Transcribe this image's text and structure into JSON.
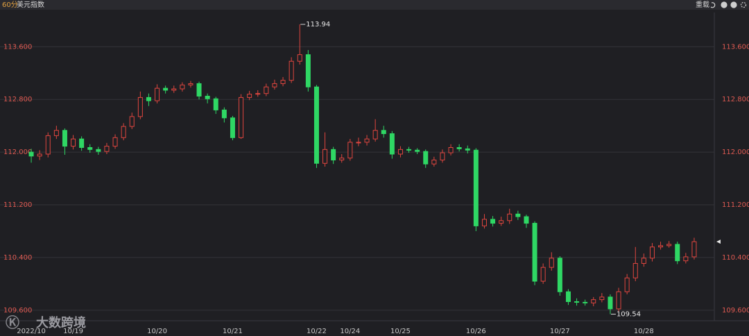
{
  "header": {
    "period": "60分",
    "symbol": "美元指数",
    "reload": "重载"
  },
  "watermark": "大数跨境",
  "chart_data": {
    "type": "candlestick",
    "categories": [
      "2022/10",
      null,
      null,
      null,
      null,
      "10/19",
      null,
      null,
      null,
      null,
      null,
      null,
      null,
      null,
      null,
      "10/20",
      null,
      null,
      null,
      null,
      null,
      null,
      null,
      null,
      "10/21",
      null,
      null,
      null,
      null,
      null,
      null,
      null,
      null,
      null,
      "10/22",
      null,
      null,
      null,
      "10/24",
      null,
      null,
      null,
      null,
      null,
      "10/25",
      null,
      null,
      null,
      null,
      null,
      null,
      null,
      null,
      "10/26",
      null,
      null,
      null,
      null,
      null,
      null,
      null,
      null,
      null,
      "10/27",
      null,
      null,
      null,
      null,
      null,
      null,
      null,
      null,
      null,
      "10/28",
      null,
      null,
      null,
      null,
      null,
      null
    ],
    "open": [
      112.0,
      111.94,
      111.97,
      112.25,
      112.33,
      112.09,
      112.2,
      112.07,
      112.04,
      112.01,
      112.09,
      112.22,
      112.39,
      112.54,
      112.83,
      112.78,
      112.97,
      112.94,
      112.96,
      113.02,
      113.04,
      112.85,
      112.81,
      112.64,
      112.52,
      112.22,
      112.83,
      112.88,
      112.89,
      112.99,
      113.04,
      113.09,
      113.38,
      113.48,
      112.99,
      111.83,
      112.04,
      111.88,
      111.91,
      112.15,
      112.15,
      112.2,
      112.33,
      112.28,
      111.97,
      112.04,
      112.03,
      112.01,
      111.82,
      111.88,
      111.99,
      112.07,
      112.05,
      112.03,
      110.88,
      110.98,
      110.92,
      110.96,
      111.06,
      111.02,
      110.92,
      110.04,
      110.25,
      110.39,
      109.88,
      109.73,
      109.72,
      109.71,
      109.76,
      109.8,
      109.62,
      109.88,
      110.09,
      110.31,
      110.39,
      110.56,
      110.58,
      110.6,
      110.35,
      110.41
    ],
    "high": [
      112.05,
      112.03,
      112.3,
      112.4,
      112.36,
      112.26,
      112.24,
      112.12,
      112.08,
      112.14,
      112.27,
      112.44,
      112.6,
      112.92,
      112.89,
      113.03,
      113.01,
      113.01,
      113.06,
      113.08,
      113.07,
      112.89,
      112.84,
      112.68,
      112.55,
      112.88,
      112.93,
      112.94,
      113.04,
      113.1,
      113.14,
      113.44,
      113.94,
      113.55,
      113.02,
      112.3,
      112.08,
      111.97,
      112.2,
      112.22,
      112.26,
      112.5,
      112.4,
      112.32,
      112.09,
      112.08,
      112.06,
      112.04,
      111.93,
      112.04,
      112.12,
      112.12,
      112.1,
      112.06,
      111.06,
      111.03,
      111.02,
      111.14,
      111.11,
      111.05,
      110.95,
      110.31,
      110.48,
      110.42,
      109.92,
      109.78,
      109.76,
      109.8,
      109.86,
      109.84,
      109.94,
      110.15,
      110.56,
      110.46,
      110.62,
      110.64,
      110.65,
      110.64,
      110.47,
      110.7
    ],
    "low": [
      111.84,
      111.88,
      111.92,
      112.2,
      111.96,
      112.04,
      112.02,
      111.99,
      111.96,
      111.97,
      112.05,
      112.18,
      112.35,
      112.5,
      112.7,
      112.74,
      112.89,
      112.9,
      112.92,
      112.98,
      112.8,
      112.74,
      112.58,
      112.45,
      112.18,
      112.2,
      112.79,
      112.84,
      112.85,
      112.95,
      113.0,
      113.05,
      113.33,
      112.92,
      111.76,
      111.78,
      111.82,
      111.84,
      111.87,
      112.09,
      112.1,
      112.16,
      112.22,
      111.9,
      111.92,
      111.99,
      111.97,
      111.76,
      111.78,
      111.84,
      111.95,
      112.01,
      111.98,
      110.8,
      110.84,
      110.87,
      110.88,
      110.91,
      110.97,
      110.85,
      109.98,
      110.0,
      110.2,
      109.82,
      109.68,
      109.67,
      109.67,
      109.66,
      109.72,
      109.54,
      109.58,
      109.84,
      110.04,
      110.26,
      110.34,
      110.52,
      110.55,
      110.3,
      110.31,
      110.37
    ],
    "close": [
      111.94,
      111.97,
      112.25,
      112.33,
      112.09,
      112.2,
      112.07,
      112.04,
      112.01,
      112.09,
      112.22,
      112.39,
      112.54,
      112.83,
      112.78,
      112.97,
      112.94,
      112.96,
      113.02,
      113.04,
      112.85,
      112.81,
      112.64,
      112.52,
      112.22,
      112.83,
      112.88,
      112.89,
      112.99,
      113.04,
      113.09,
      113.38,
      113.48,
      112.99,
      111.83,
      112.04,
      111.88,
      111.91,
      112.15,
      112.15,
      112.2,
      112.33,
      112.28,
      111.97,
      112.04,
      112.03,
      112.01,
      111.82,
      111.88,
      111.99,
      112.07,
      112.05,
      112.03,
      110.88,
      110.98,
      110.92,
      110.96,
      111.06,
      111.02,
      110.92,
      110.04,
      110.25,
      110.39,
      109.88,
      109.73,
      109.72,
      109.71,
      109.76,
      109.8,
      109.62,
      109.88,
      110.09,
      110.31,
      110.39,
      110.56,
      110.58,
      110.6,
      110.35,
      110.41,
      110.64
    ],
    "up_color": "#e0463f",
    "down_color": "#2fd764",
    "ylim": [
      109.44,
      114.12
    ],
    "yticks": [
      {
        "value": 109.6,
        "label": "109.600"
      },
      {
        "value": 110.4,
        "label": "110.400"
      },
      {
        "value": 111.2,
        "label": "111.200"
      },
      {
        "value": 112.0,
        "label": "112.000"
      },
      {
        "value": 112.8,
        "label": "112.800"
      },
      {
        "value": 113.6,
        "label": "113.600"
      }
    ],
    "grid": true
  }
}
